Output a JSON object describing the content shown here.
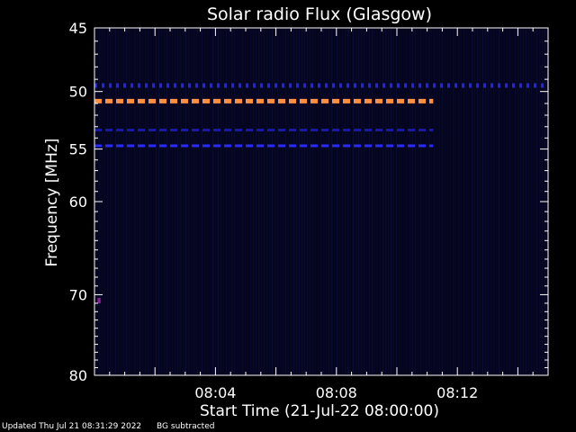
{
  "chart_data": {
    "type": "heatmap",
    "title": "Solar radio Flux (Glasgow)",
    "xlabel": "Start Time (21-Jul-22 08:00:00)",
    "ylabel": "Frequency [MHz]",
    "x_range_minutes": [
      0,
      15
    ],
    "y_range_mhz": [
      45,
      80
    ],
    "y_scale": "log",
    "x_tick_labels": [
      {
        "minute": 4,
        "label": "08:04"
      },
      {
        "minute": 8,
        "label": "08:08"
      },
      {
        "minute": 12,
        "label": "08:12"
      }
    ],
    "y_tick_labels": [
      {
        "value": 45,
        "label": "45"
      },
      {
        "value": 50,
        "label": "50"
      },
      {
        "value": 55,
        "label": "55"
      },
      {
        "value": 60,
        "label": "60"
      },
      {
        "value": 70,
        "label": "70"
      },
      {
        "value": 80,
        "label": "80"
      }
    ],
    "background_color": "#05051e",
    "features": [
      {
        "freq_mhz": 49.5,
        "minute_start": 0.0,
        "minute_end": 15.0,
        "color": "#2020ff",
        "style": "dotted"
      },
      {
        "freq_mhz": 50.8,
        "minute_start": 0.0,
        "minute_end": 11.2,
        "color": "#ff9040",
        "style": "dashed"
      },
      {
        "freq_mhz": 53.3,
        "minute_start": 0.0,
        "minute_end": 11.2,
        "color": "#1a1aa0",
        "style": "dashed"
      },
      {
        "freq_mhz": 54.7,
        "minute_start": 0.0,
        "minute_end": 11.2,
        "color": "#2a2aff",
        "style": "dashed"
      },
      {
        "freq_mhz": 70.7,
        "minute_start": 0.1,
        "minute_end": 0.2,
        "color": "#9020a0",
        "style": "spot"
      }
    ]
  },
  "footer": {
    "updated": "Updated Thu Jul 21 08:31:29 2022",
    "note": "BG subtracted"
  }
}
